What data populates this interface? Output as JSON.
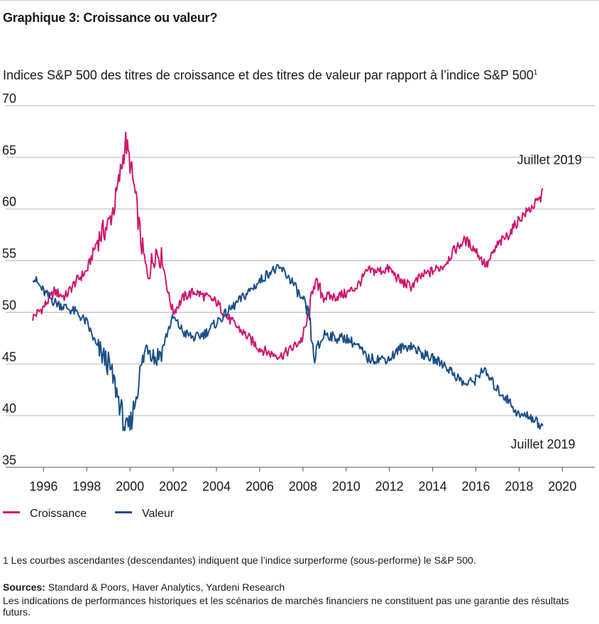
{
  "title": "Graphique 3: Croissance ou valeur?",
  "subtitle": "Indices S&P 500 des titres de croissance et des titres de valeur par rapport à l’indice S&P 500",
  "subtitle_note": "1",
  "legend": [
    {
      "label": "Croissance",
      "color": "#d0166e"
    },
    {
      "label": "Valeur",
      "color": "#1b4f8a"
    }
  ],
  "footnote": "1 Les courbes ascendantes (descendantes) indiquent que l’indice surperforme (sous-performe) le S&P 500.",
  "sources_label": "Sources:",
  "sources_text": " Standard & Poors, Haver Analytics, Yardeni Research",
  "disclaimer": "Les indications de performances historiques et les scénarios de marchés financiers ne constituent pas une garantie des résultats futurs.",
  "chart_data": {
    "type": "line",
    "title": "Indices S&P 500 des titres de croissance et des titres de valeur par rapport à l’indice S&P 500",
    "xlabel": "",
    "ylabel": "",
    "xlim": [
      1995.3,
      2021.5
    ],
    "ylim": [
      35,
      70
    ],
    "yticks": [
      35,
      40,
      45,
      50,
      55,
      60,
      65,
      70
    ],
    "xticks": [
      1996,
      1998,
      2000,
      2002,
      2004,
      2006,
      2008,
      2010,
      2012,
      2014,
      2016,
      2018,
      2020
    ],
    "grid": "horizontal",
    "legend_position": "bottom-left",
    "annotations": [
      {
        "text": "Juillet 2019",
        "x": 2019.0,
        "y": 62.0,
        "series": "Croissance"
      },
      {
        "text": "Juillet 2019",
        "x": 2019.0,
        "y": 39.0,
        "series": "Valeur"
      }
    ],
    "series": [
      {
        "name": "Croissance",
        "color": "#d0166e",
        "points": [
          [
            1995.5,
            49.5
          ],
          [
            1996.0,
            50.5
          ],
          [
            1996.5,
            52.0
          ],
          [
            1997.0,
            51.5
          ],
          [
            1997.5,
            53.0
          ],
          [
            1998.0,
            54.0
          ],
          [
            1998.5,
            57.0
          ],
          [
            1999.0,
            58.5
          ],
          [
            1999.3,
            60.5
          ],
          [
            1999.6,
            64.0
          ],
          [
            1999.8,
            66.5
          ],
          [
            2000.0,
            64.5
          ],
          [
            2000.2,
            62.0
          ],
          [
            2000.5,
            57.0
          ],
          [
            2000.8,
            53.5
          ],
          [
            2001.2,
            56.0
          ],
          [
            2001.5,
            55.0
          ],
          [
            2001.8,
            51.5
          ],
          [
            2002.0,
            50.0
          ],
          [
            2002.5,
            51.5
          ],
          [
            2003.0,
            52.0
          ],
          [
            2003.5,
            51.5
          ],
          [
            2004.0,
            51.0
          ],
          [
            2004.5,
            49.5
          ],
          [
            2005.0,
            48.5
          ],
          [
            2005.5,
            47.5
          ],
          [
            2006.0,
            46.5
          ],
          [
            2006.5,
            46.0
          ],
          [
            2007.0,
            45.8
          ],
          [
            2007.5,
            46.5
          ],
          [
            2008.0,
            47.5
          ],
          [
            2008.3,
            50.0
          ],
          [
            2008.5,
            53.0
          ],
          [
            2009.0,
            51.5
          ],
          [
            2009.5,
            51.5
          ],
          [
            2010.0,
            51.8
          ],
          [
            2010.5,
            52.5
          ],
          [
            2011.0,
            54.0
          ],
          [
            2011.5,
            54.0
          ],
          [
            2012.0,
            54.2
          ],
          [
            2012.5,
            53.0
          ],
          [
            2013.0,
            52.5
          ],
          [
            2013.5,
            53.5
          ],
          [
            2014.0,
            54.0
          ],
          [
            2014.5,
            54.5
          ],
          [
            2015.0,
            56.0
          ],
          [
            2015.5,
            57.0
          ],
          [
            2016.0,
            56.0
          ],
          [
            2016.3,
            55.0
          ],
          [
            2016.5,
            54.5
          ],
          [
            2017.0,
            56.5
          ],
          [
            2017.5,
            57.5
          ],
          [
            2018.0,
            59.0
          ],
          [
            2018.5,
            60.0
          ],
          [
            2019.0,
            61.0
          ],
          [
            2019.1,
            62.0
          ]
        ]
      },
      {
        "name": "Valeur",
        "color": "#1b4f8a",
        "points": [
          [
            1995.5,
            53.5
          ],
          [
            1996.0,
            52.0
          ],
          [
            1996.5,
            51.0
          ],
          [
            1997.0,
            50.5
          ],
          [
            1997.5,
            50.0
          ],
          [
            1998.0,
            49.0
          ],
          [
            1998.5,
            46.5
          ],
          [
            1999.0,
            45.0
          ],
          [
            1999.3,
            43.0
          ],
          [
            1999.6,
            40.5
          ],
          [
            1999.8,
            38.5
          ],
          [
            2000.0,
            39.0
          ],
          [
            2000.2,
            41.0
          ],
          [
            2000.5,
            44.5
          ],
          [
            2000.8,
            47.0
          ],
          [
            2001.2,
            45.5
          ],
          [
            2001.5,
            46.5
          ],
          [
            2001.8,
            48.5
          ],
          [
            2002.0,
            49.5
          ],
          [
            2002.5,
            48.0
          ],
          [
            2003.0,
            47.5
          ],
          [
            2003.5,
            48.0
          ],
          [
            2004.0,
            49.0
          ],
          [
            2004.5,
            50.0
          ],
          [
            2005.0,
            51.0
          ],
          [
            2005.5,
            52.0
          ],
          [
            2006.0,
            53.0
          ],
          [
            2006.5,
            54.0
          ],
          [
            2007.0,
            54.2
          ],
          [
            2007.5,
            53.0
          ],
          [
            2008.0,
            51.0
          ],
          [
            2008.3,
            49.5
          ],
          [
            2008.5,
            45.5
          ],
          [
            2009.0,
            48.0
          ],
          [
            2009.5,
            47.5
          ],
          [
            2010.0,
            47.5
          ],
          [
            2010.5,
            46.8
          ],
          [
            2011.0,
            45.5
          ],
          [
            2011.5,
            45.5
          ],
          [
            2012.0,
            45.5
          ],
          [
            2012.5,
            46.5
          ],
          [
            2013.0,
            46.8
          ],
          [
            2013.5,
            46.0
          ],
          [
            2014.0,
            45.5
          ],
          [
            2014.5,
            45.0
          ],
          [
            2015.0,
            44.0
          ],
          [
            2015.5,
            43.0
          ],
          [
            2016.0,
            43.5
          ],
          [
            2016.3,
            44.5
          ],
          [
            2016.5,
            44.0
          ],
          [
            2017.0,
            42.5
          ],
          [
            2017.5,
            41.5
          ],
          [
            2018.0,
            40.0
          ],
          [
            2018.5,
            40.0
          ],
          [
            2019.0,
            39.0
          ],
          [
            2019.1,
            39.0
          ]
        ]
      }
    ]
  }
}
